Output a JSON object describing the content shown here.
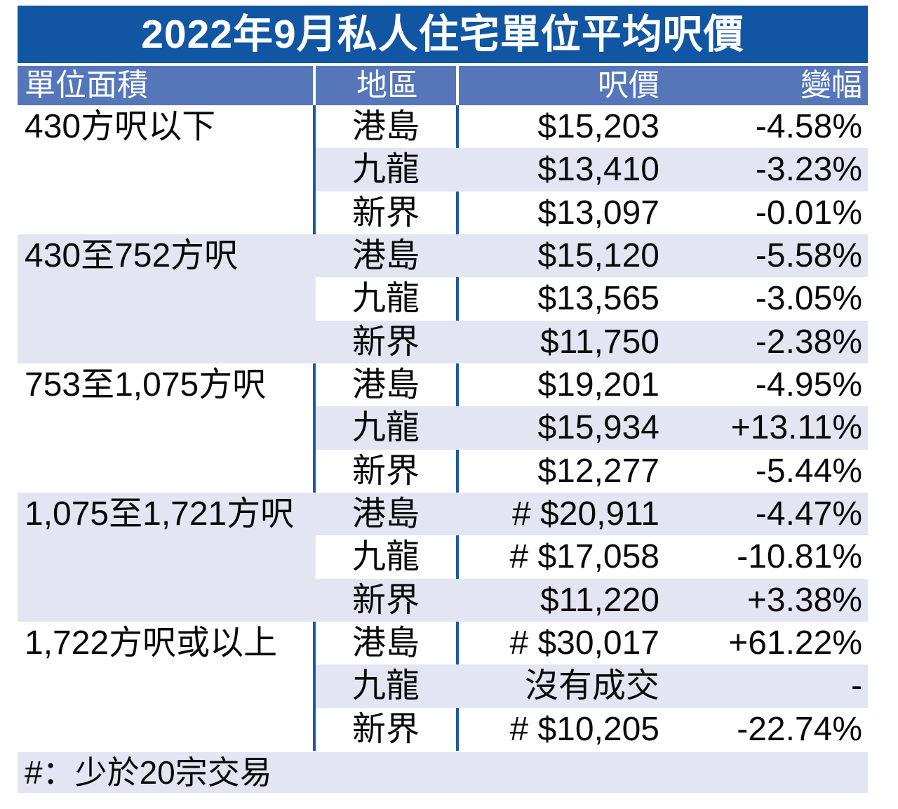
{
  "colors": {
    "title_bg": "#1156a2",
    "header_bg": "#5577ba",
    "row_stripe": "#e3e6f2",
    "divider_blue": "#2058a6",
    "header_text": "#ffffff",
    "body_text": "#0a0a0a"
  },
  "chart_data": {
    "type": "table",
    "title": "2022年9月私人住宅單位平均呎價",
    "columns": [
      "單位面積",
      "地區",
      "呎價",
      "變幅"
    ],
    "groups": [
      {
        "label": "430方呎以下",
        "rows": [
          {
            "district": "港島",
            "price": "$15,203",
            "change": "-4.58%"
          },
          {
            "district": "九龍",
            "price": "$13,410",
            "change": "-3.23%"
          },
          {
            "district": "新界",
            "price": "$13,097",
            "change": "-0.01%"
          }
        ]
      },
      {
        "label": "430至752方呎",
        "rows": [
          {
            "district": "港島",
            "price": "$15,120",
            "change": "-5.58%"
          },
          {
            "district": "九龍",
            "price": "$13,565",
            "change": "-3.05%"
          },
          {
            "district": "新界",
            "price": "$11,750",
            "change": "-2.38%"
          }
        ]
      },
      {
        "label": "753至1,075方呎",
        "rows": [
          {
            "district": "港島",
            "price": "$19,201",
            "change": "-4.95%"
          },
          {
            "district": "九龍",
            "price": "$15,934",
            "change": "+13.11%"
          },
          {
            "district": "新界",
            "price": "$12,277",
            "change": "-5.44%"
          }
        ]
      },
      {
        "label": "1,075至1,721方呎",
        "rows": [
          {
            "district": "港島",
            "price": "# $20,911",
            "change": "-4.47%"
          },
          {
            "district": "九龍",
            "price": "# $17,058",
            "change": "-10.81%"
          },
          {
            "district": "新界",
            "price": "$11,220",
            "change": "+3.38%"
          }
        ]
      },
      {
        "label": "1,722方呎或以上",
        "rows": [
          {
            "district": "港島",
            "price": "# $30,017",
            "change": "+61.22%"
          },
          {
            "district": "九龍",
            "price": "沒有成交",
            "change": "-"
          },
          {
            "district": "新界",
            "price": "# $10,205",
            "change": "-22.74%"
          }
        ]
      }
    ],
    "footnote": "#：少於20宗交易"
  }
}
